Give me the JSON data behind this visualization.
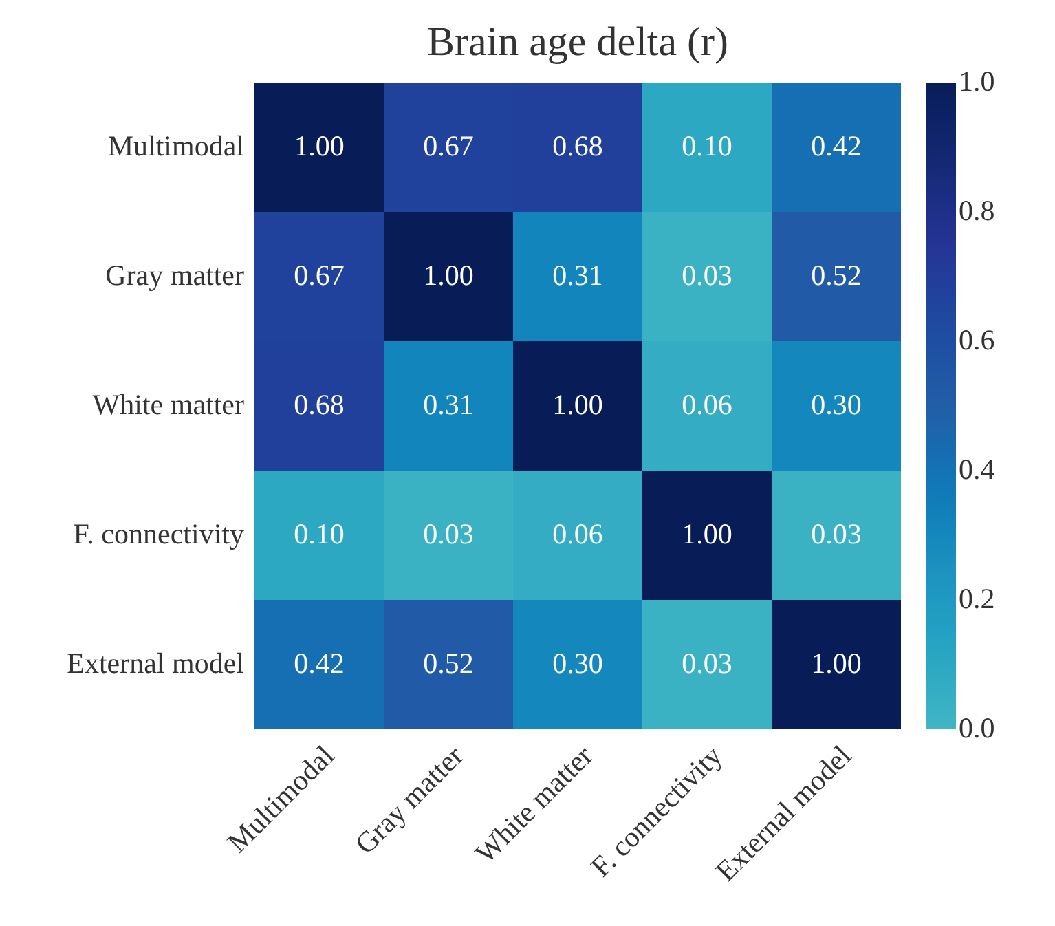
{
  "chart_data": {
    "type": "heatmap",
    "title": "Brain age delta (r)",
    "categories": [
      "Multimodal",
      "Gray matter",
      "White matter",
      "F. connectivity",
      "External model"
    ],
    "y_categories": [
      "Multimodal",
      "Gray matter",
      "White matter",
      "F. connectivity",
      "External model"
    ],
    "cells": [
      [
        1.0,
        0.67,
        0.68,
        0.1,
        0.42
      ],
      [
        0.67,
        1.0,
        0.31,
        0.03,
        0.52
      ],
      [
        0.68,
        0.31,
        1.0,
        0.06,
        0.3
      ],
      [
        0.1,
        0.03,
        0.06,
        1.0,
        0.03
      ],
      [
        0.42,
        0.52,
        0.3,
        0.03,
        1.0
      ]
    ],
    "cell_labels": [
      [
        "1.00",
        "0.67",
        "0.68",
        "0.10",
        "0.42"
      ],
      [
        "0.67",
        "1.00",
        "0.31",
        "0.03",
        "0.52"
      ],
      [
        "0.68",
        "0.31",
        "1.00",
        "0.06",
        "0.30"
      ],
      [
        "0.10",
        "0.03",
        "0.06",
        "1.00",
        "0.03"
      ],
      [
        "0.42",
        "0.52",
        "0.30",
        "0.03",
        "1.00"
      ]
    ],
    "clim": [
      0,
      1
    ],
    "cticks": [
      {
        "value": 0,
        "label": "0.0"
      },
      {
        "value": 0.2,
        "label": "0.2"
      },
      {
        "value": 0.4,
        "label": "0.4"
      },
      {
        "value": 0.6,
        "label": "0.6"
      },
      {
        "value": 0.8,
        "label": "0.8"
      },
      {
        "value": 1,
        "label": "1.0"
      }
    ],
    "colors": [
      "#41b6c4",
      "#1d91c0",
      "#225ea8",
      "#253494",
      "#081d58"
    ],
    "grid": false
  }
}
